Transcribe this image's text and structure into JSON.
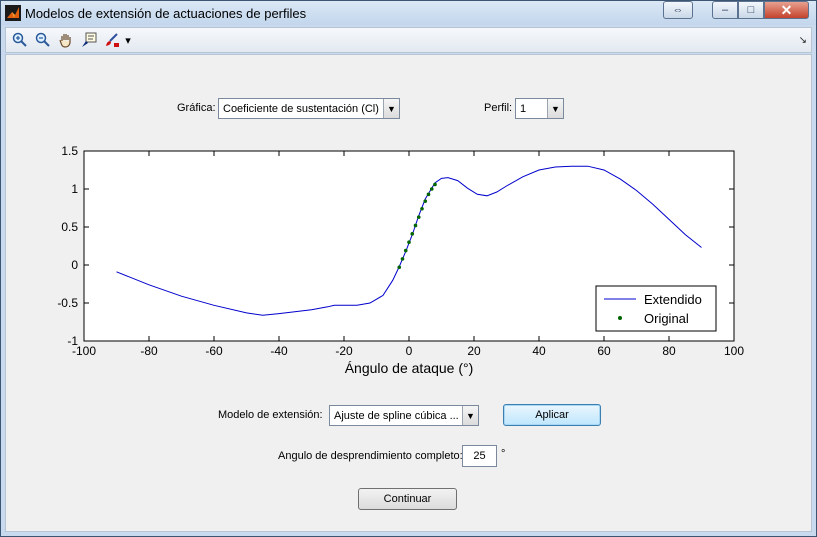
{
  "window": {
    "title": "Modelos de extensión de actuaciones de perfiles",
    "restore_glyph": "⇔",
    "minimize_glyph": "–",
    "maximize_glyph": "□",
    "close_glyph": "✕"
  },
  "toolbar": {
    "tools": [
      "zoom-in-icon",
      "zoom-out-icon",
      "pan-hand-icon",
      "data-cursor-icon",
      "brush-icon"
    ],
    "dropdown_glyph": "▾",
    "corner_glyph": "↘"
  },
  "controls": {
    "grafica_label": "Gráfica:",
    "grafica_value": "Coeficiente de sustentación (Cl)",
    "perfil_label": "Perfil:",
    "perfil_value": "1",
    "modelo_label": "Modelo de extensión:",
    "modelo_value": "Ajuste de spline cúbica ...",
    "aplicar_label": "Aplicar",
    "angulo_label": "Angulo de desprendimiento completo:",
    "angulo_value": "25",
    "angulo_unit": "°",
    "continuar_label": "Continuar"
  },
  "colors": {
    "extendido": "#0000cc",
    "original": "#006400"
  },
  "chart_data": {
    "type": "line",
    "xlabel": "Ángulo de ataque (°)",
    "ylabel": "",
    "xlim": [
      -100,
      100
    ],
    "ylim": [
      -1,
      1.5
    ],
    "xticks": [
      -100,
      -80,
      -60,
      -40,
      -20,
      0,
      20,
      40,
      60,
      80,
      100
    ],
    "yticks": [
      -1,
      -0.5,
      0,
      0.5,
      1,
      1.5
    ],
    "ytick_labels": [
      "-1",
      "-0.5",
      "0",
      "0.5",
      "1",
      "1.5"
    ],
    "legend_position": "bottom-right",
    "series": [
      {
        "name": "Extendido",
        "style": "line",
        "x": [
          -90,
          -80,
          -70,
          -60,
          -50,
          -45,
          -40,
          -30,
          -25,
          -23,
          -20,
          -16,
          -12,
          -8,
          -5,
          -3,
          -1,
          1,
          3,
          5,
          8,
          10,
          12,
          15,
          18,
          21,
          24,
          27,
          30,
          35,
          40,
          45,
          50,
          55,
          60,
          65,
          70,
          75,
          80,
          85,
          90
        ],
        "y": [
          -0.09,
          -0.26,
          -0.41,
          -0.53,
          -0.63,
          -0.66,
          -0.64,
          -0.59,
          -0.55,
          -0.53,
          -0.53,
          -0.53,
          -0.5,
          -0.4,
          -0.2,
          -0.02,
          0.18,
          0.4,
          0.65,
          0.87,
          1.08,
          1.14,
          1.15,
          1.11,
          1.01,
          0.93,
          0.91,
          0.96,
          1.04,
          1.16,
          1.25,
          1.29,
          1.3,
          1.3,
          1.25,
          1.13,
          0.98,
          0.8,
          0.6,
          0.4,
          0.23
        ]
      },
      {
        "name": "Original",
        "style": "markers",
        "x": [
          -3,
          -2,
          -1,
          0,
          1,
          2,
          3,
          4,
          5,
          6,
          7,
          8
        ],
        "y": [
          -0.03,
          0.08,
          0.19,
          0.3,
          0.41,
          0.52,
          0.63,
          0.74,
          0.84,
          0.93,
          1.0,
          1.06
        ]
      }
    ]
  }
}
